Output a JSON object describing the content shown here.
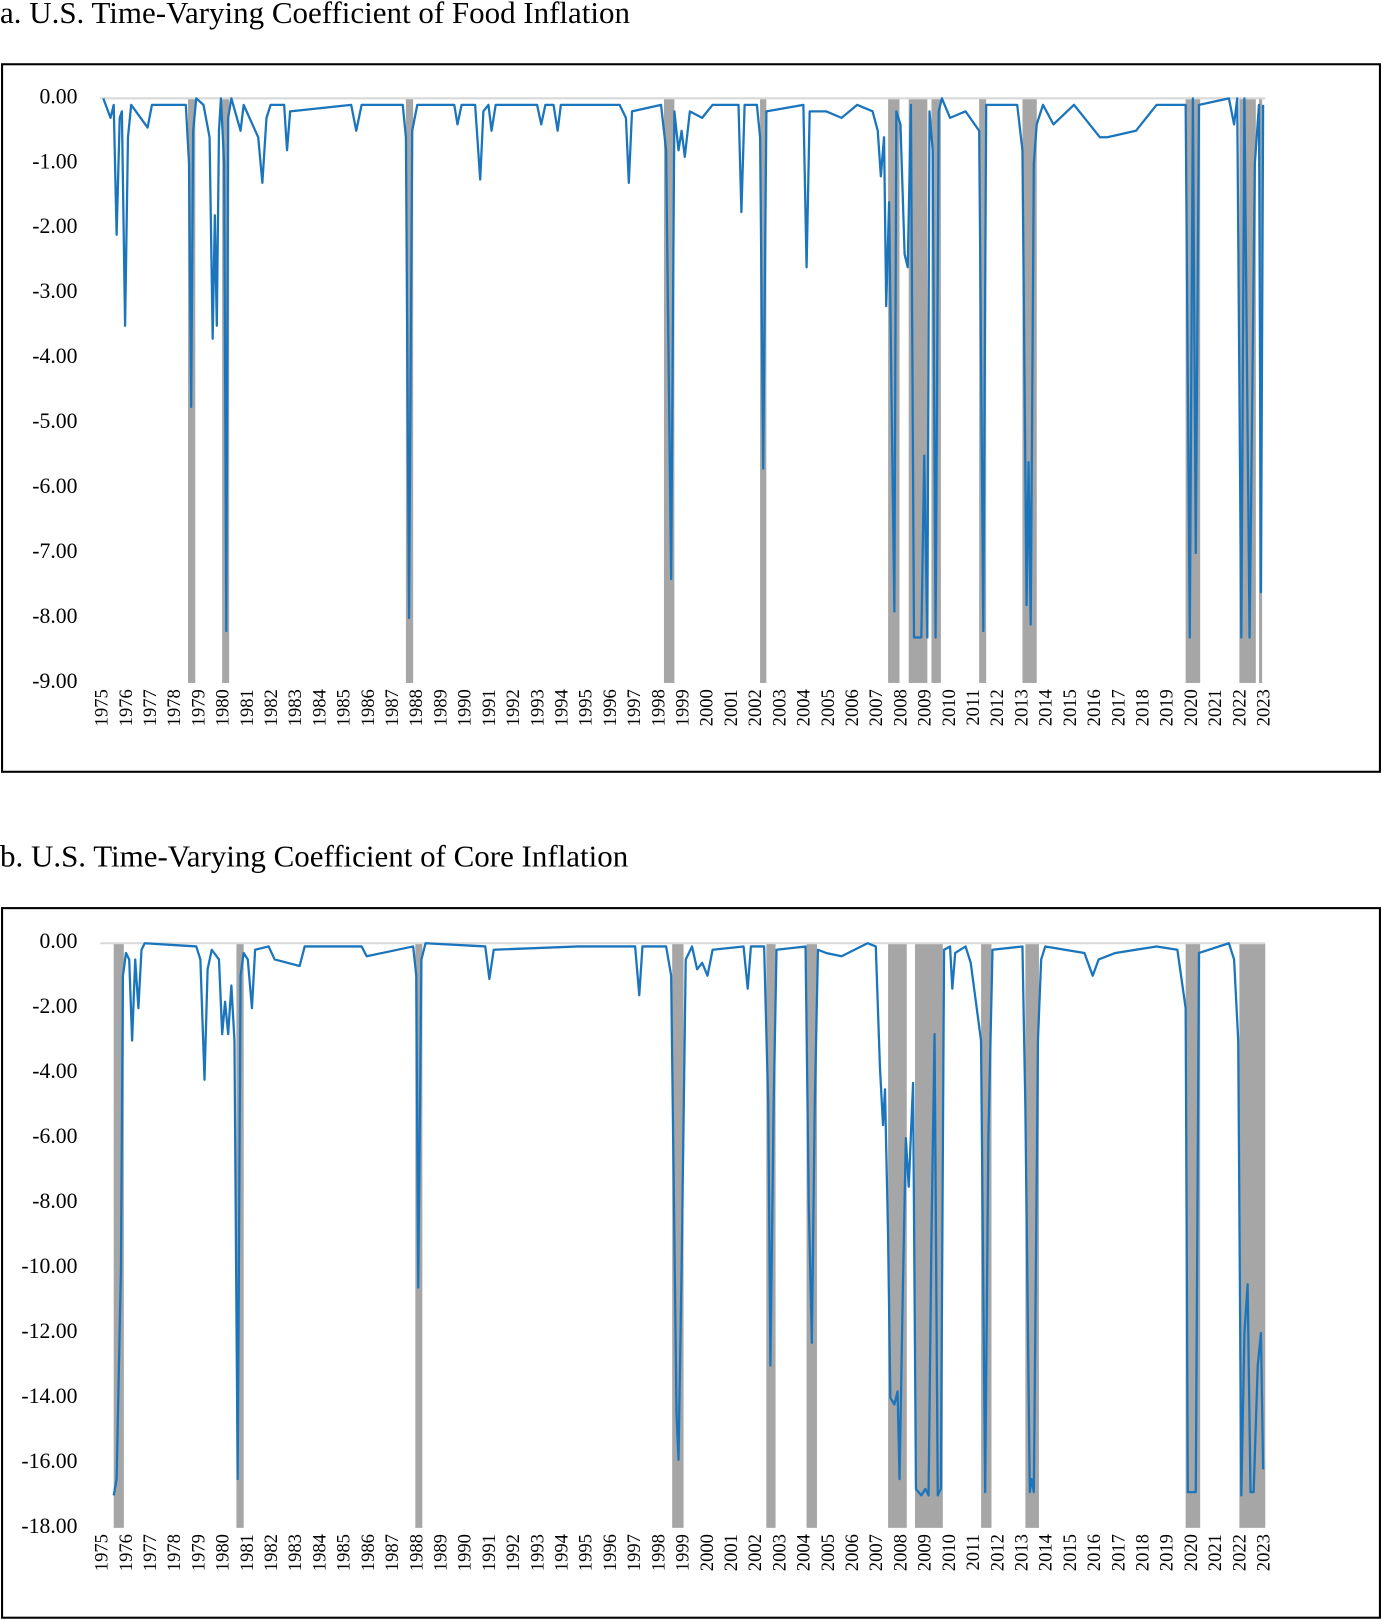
{
  "chart_data": [
    {
      "type": "line",
      "title": "a. U.S. Time-Varying Coefficient of Food Inflation",
      "color": "#1b75bc",
      "shade_color": "#a6a6a6",
      "xlim": [
        1975,
        2023
      ],
      "ylim": [
        -9,
        0
      ],
      "xticks": [
        1975,
        1976,
        1977,
        1978,
        1979,
        1980,
        1981,
        1982,
        1983,
        1984,
        1985,
        1986,
        1987,
        1988,
        1989,
        1990,
        1991,
        1992,
        1993,
        1994,
        1995,
        1996,
        1997,
        1998,
        1999,
        2000,
        2001,
        2002,
        2003,
        2004,
        2005,
        2006,
        2007,
        2008,
        2009,
        2010,
        2011,
        2012,
        2013,
        2014,
        2015,
        2016,
        2017,
        2018,
        2019,
        2020,
        2021,
        2022,
        2023
      ],
      "yticks": [
        {
          "value": 0,
          "label": "0.00"
        },
        {
          "value": -1,
          "label": "-1.00"
        },
        {
          "value": -2,
          "label": "-2.00"
        },
        {
          "value": -3,
          "label": "-3.00"
        },
        {
          "value": -4,
          "label": "-4.00"
        },
        {
          "value": -5,
          "label": "-5.00"
        },
        {
          "value": -6,
          "label": "-6.00"
        },
        {
          "value": -7,
          "label": "-7.00"
        },
        {
          "value": -8,
          "label": "-8.00"
        },
        {
          "value": -9,
          "label": "-9.00"
        }
      ],
      "shaded": [
        [
          1978.5,
          1978.8
        ],
        [
          1979.91,
          1980.2
        ],
        [
          1987.5,
          1987.8
        ],
        [
          1998.16,
          1998.59
        ],
        [
          2002.13,
          2002.39
        ],
        [
          2007.42,
          2007.89
        ],
        [
          2008.27,
          2009.04
        ],
        [
          2009.21,
          2009.6
        ],
        [
          2011.18,
          2011.47
        ],
        [
          2012.97,
          2013.56
        ],
        [
          2019.71,
          2020.31
        ],
        [
          2021.93,
          2022.61
        ],
        [
          2022.74,
          2022.87
        ]
      ],
      "x": [
        1975.0,
        1975.3,
        1975.43,
        1975.55,
        1975.68,
        1975.77,
        1975.9,
        1976.02,
        1976.15,
        1976.83,
        1977.01,
        1978.41,
        1978.54,
        1978.63,
        1978.71,
        1978.84,
        1979.14,
        1979.39,
        1979.52,
        1979.61,
        1979.69,
        1979.78,
        1979.86,
        1979.99,
        1980.08,
        1980.16,
        1980.29,
        1980.67,
        1980.8,
        1981.4,
        1981.57,
        1981.74,
        1981.91,
        1982.47,
        1982.59,
        1982.72,
        1985.24,
        1985.45,
        1985.67,
        1987.37,
        1987.5,
        1987.63,
        1987.76,
        1987.97,
        1989.5,
        1989.63,
        1989.8,
        1990.36,
        1990.57,
        1990.7,
        1990.91,
        1991.04,
        1991.21,
        1992.92,
        1993.09,
        1993.26,
        1993.6,
        1993.77,
        1993.9,
        1996.33,
        1996.59,
        1996.71,
        1996.84,
        1998.04,
        1998.25,
        1998.46,
        1998.59,
        1998.76,
        1998.89,
        1999.02,
        1999.23,
        1999.74,
        2000.17,
        2001.24,
        2001.36,
        2001.49,
        2002.0,
        2002.13,
        2002.26,
        2002.39,
        2003.92,
        2004.05,
        2004.18,
        2004.86,
        2005.5,
        2006.14,
        2006.78,
        2006.99,
        2007.12,
        2007.25,
        2007.34,
        2007.46,
        2007.55,
        2007.68,
        2007.76,
        2007.93,
        2008.1,
        2008.23,
        2008.36,
        2008.49,
        2008.79,
        2008.91,
        2009.04,
        2009.13,
        2009.26,
        2009.38,
        2009.51,
        2009.64,
        2009.98,
        2010.62,
        2011.18,
        2011.35,
        2011.47,
        2012.75,
        2012.97,
        2013.14,
        2013.22,
        2013.31,
        2013.44,
        2013.56,
        2013.82,
        2014.25,
        2015.1,
        2016.17,
        2016.47,
        2017.66,
        2018.51,
        2019.71,
        2019.88,
        2020.01,
        2020.13,
        2020.26,
        2021.5,
        2021.71,
        2021.84,
        2022.01,
        2022.14,
        2022.35,
        2022.57,
        2022.74,
        2022.82,
        2022.91
      ],
      "values": [
        0,
        -0.3,
        -0.1,
        -2.1,
        -0.3,
        -0.2,
        -3.5,
        -0.6,
        -0.1,
        -0.45,
        -0.1,
        -0.1,
        -1.0,
        -4.75,
        -0.5,
        0,
        -0.1,
        -0.6,
        -3.7,
        -1.8,
        -3.5,
        -0.5,
        0,
        -1.0,
        -8.2,
        -0.3,
        0,
        -0.5,
        -0.1,
        -0.6,
        -1.3,
        -0.3,
        -0.1,
        -0.1,
        -0.8,
        -0.2,
        -0.1,
        -0.5,
        -0.1,
        -0.1,
        -0.6,
        -8.0,
        -0.5,
        -0.1,
        -0.1,
        -0.4,
        -0.1,
        -0.1,
        -1.25,
        -0.2,
        -0.1,
        -0.5,
        -0.1,
        -0.1,
        -0.4,
        -0.1,
        -0.1,
        -0.5,
        -0.1,
        -0.1,
        -0.3,
        -1.3,
        -0.2,
        -0.1,
        -0.8,
        -7.4,
        -0.2,
        -0.8,
        -0.5,
        -0.9,
        -0.2,
        -0.3,
        -0.1,
        -0.1,
        -1.75,
        -0.1,
        -0.1,
        -0.6,
        -5.7,
        -0.2,
        -0.1,
        -2.6,
        -0.2,
        -0.2,
        -0.3,
        -0.1,
        -0.2,
        -0.5,
        -1.2,
        -0.6,
        -3.2,
        -1.6,
        -4.3,
        -7.9,
        -0.2,
        -0.4,
        -2.4,
        -2.6,
        -0.1,
        -8.3,
        -8.3,
        -5.5,
        -8.3,
        -0.2,
        -0.8,
        -8.3,
        -0.2,
        0,
        -0.3,
        -0.2,
        -0.5,
        -8.2,
        -0.1,
        -0.1,
        -0.8,
        -7.8,
        -5.6,
        -8.1,
        -1.0,
        -0.4,
        -0.1,
        -0.4,
        -0.1,
        -0.6,
        -0.6,
        -0.5,
        -0.1,
        -0.1,
        -8.3,
        0,
        -7.0,
        -0.1,
        0,
        -0.4,
        0,
        -8.3,
        0,
        -8.3,
        -1.0,
        -0.1,
        -7.6,
        -0.1
      ]
    },
    {
      "type": "line",
      "title": "b. U.S. Time-Varying Coefficient of Core Inflation",
      "color": "#1b75bc",
      "shade_color": "#a6a6a6",
      "xlim": [
        1975,
        2023
      ],
      "ylim": [
        -18,
        0
      ],
      "xticks": [
        1975,
        1976,
        1977,
        1978,
        1979,
        1980,
        1981,
        1982,
        1983,
        1984,
        1985,
        1986,
        1987,
        1988,
        1989,
        1990,
        1991,
        1992,
        1993,
        1994,
        1995,
        1996,
        1997,
        1998,
        1999,
        2000,
        2001,
        2002,
        2003,
        2004,
        2005,
        2006,
        2007,
        2008,
        2009,
        2010,
        2011,
        2012,
        2013,
        2014,
        2015,
        2016,
        2017,
        2018,
        2019,
        2020,
        2021,
        2022,
        2023
      ],
      "yticks": [
        {
          "value": 0,
          "label": "0.00"
        },
        {
          "value": -2,
          "label": "-2.00"
        },
        {
          "value": -4,
          "label": "-4.00"
        },
        {
          "value": -6,
          "label": "-6.00"
        },
        {
          "value": -8,
          "label": "-8.00"
        },
        {
          "value": -10,
          "label": "-10.00"
        },
        {
          "value": -12,
          "label": "-12.00"
        },
        {
          "value": -14,
          "label": "-14.00"
        },
        {
          "value": -16,
          "label": "-16.00"
        },
        {
          "value": -18,
          "label": "-18.00"
        }
      ],
      "shaded": [
        [
          1975.43,
          1975.85
        ],
        [
          1980.5,
          1980.8
        ],
        [
          1987.89,
          1988.18
        ],
        [
          1998.5,
          1998.97
        ],
        [
          2002.39,
          2002.77
        ],
        [
          2004.05,
          2004.48
        ],
        [
          2007.42,
          2008.19
        ],
        [
          2008.53,
          2009.68
        ],
        [
          2011.26,
          2011.69
        ],
        [
          2013.09,
          2013.65
        ],
        [
          2019.71,
          2020.31
        ],
        [
          2021.93,
          2023.0
        ]
      ],
      "x": [
        1975.43,
        1975.55,
        1975.73,
        1975.81,
        1975.94,
        1976.07,
        1976.19,
        1976.32,
        1976.45,
        1976.58,
        1976.71,
        1978.84,
        1979.01,
        1979.18,
        1979.31,
        1979.48,
        1979.78,
        1979.91,
        1980.03,
        1980.16,
        1980.29,
        1980.42,
        1980.55,
        1980.67,
        1980.8,
        1980.97,
        1981.14,
        1981.27,
        1981.83,
        1982.08,
        1983.11,
        1983.32,
        1985.67,
        1985.88,
        1987.8,
        1987.93,
        1988.01,
        1988.14,
        1988.31,
        1990.78,
        1990.95,
        1991.13,
        1994.62,
        1996.97,
        1997.14,
        1997.27,
        1998.25,
        1998.46,
        1998.68,
        1998.76,
        1998.89,
        1999.06,
        1999.32,
        1999.53,
        1999.74,
        1999.96,
        2000.17,
        2001.45,
        2001.62,
        2001.75,
        2002.3,
        2002.47,
        2002.56,
        2002.69,
        2002.81,
        2004.01,
        2004.14,
        2004.27,
        2004.39,
        2004.52,
        2004.86,
        2005.5,
        2006.57,
        2006.91,
        2007.08,
        2007.21,
        2007.29,
        2007.42,
        2007.51,
        2007.68,
        2007.81,
        2007.89,
        2008.02,
        2008.15,
        2008.27,
        2008.45,
        2008.57,
        2008.79,
        2008.96,
        2009.09,
        2009.21,
        2009.34,
        2009.47,
        2009.6,
        2009.73,
        2009.98,
        2010.07,
        2010.19,
        2010.62,
        2010.83,
        2011.26,
        2011.43,
        2011.56,
        2011.73,
        2012.97,
        2013.09,
        2013.27,
        2013.35,
        2013.44,
        2013.61,
        2013.74,
        2013.91,
        2015.53,
        2015.87,
        2016.12,
        2016.81,
        2018.51,
        2019.37,
        2019.71,
        2019.8,
        2020.13,
        2020.26,
        2021.5,
        2021.71,
        2021.88,
        2022.01,
        2022.14,
        2022.27,
        2022.39,
        2022.52,
        2022.69,
        2022.82,
        2022.91
      ],
      "values": [
        -17,
        -16.5,
        -10,
        -1,
        -0.3,
        -0.5,
        -3.0,
        -0.5,
        -2.0,
        -0.2,
        0,
        -0.1,
        -0.5,
        -4.2,
        -0.8,
        -0.2,
        -0.5,
        -2.8,
        -1.8,
        -2.8,
        -1.3,
        -3,
        -16.5,
        -1,
        -0.3,
        -0.5,
        -2.0,
        -0.2,
        -0.1,
        -0.5,
        -0.7,
        -0.1,
        -0.1,
        -0.4,
        -0.1,
        -1,
        -10.6,
        -0.5,
        0,
        -0.1,
        -1.1,
        -0.2,
        -0.1,
        -0.1,
        -1.6,
        -0.1,
        -0.1,
        -1,
        -14.5,
        -15.9,
        -10,
        -0.5,
        -0.1,
        -0.8,
        -0.6,
        -1,
        -0.2,
        -0.1,
        -1.4,
        -0.1,
        -0.1,
        -5,
        -13,
        -5,
        -0.2,
        -0.1,
        -8,
        -12.3,
        -5,
        -0.2,
        -0.3,
        -0.4,
        0,
        -0.1,
        -3.8,
        -5.6,
        -4.5,
        -9,
        -14,
        -14.2,
        -13.8,
        -16.5,
        -11,
        -6,
        -7.5,
        -4.3,
        -16.8,
        -17,
        -16.8,
        -17,
        -9,
        -2.8,
        -17,
        -16.8,
        -0.2,
        -0.1,
        -1.4,
        -0.3,
        -0.1,
        -0.6,
        -3,
        -16.9,
        -6,
        -0.2,
        -0.1,
        -5,
        -16.9,
        -16.5,
        -16.9,
        -3,
        -0.5,
        -0.1,
        -0.3,
        -1,
        -0.5,
        -0.3,
        -0.1,
        -0.2,
        -2,
        -16.9,
        -16.9,
        -0.3,
        0,
        -0.5,
        -3,
        -17,
        -12,
        -10.5,
        -16.9,
        -16.9,
        -13,
        -12,
        -16.2
      ]
    }
  ]
}
